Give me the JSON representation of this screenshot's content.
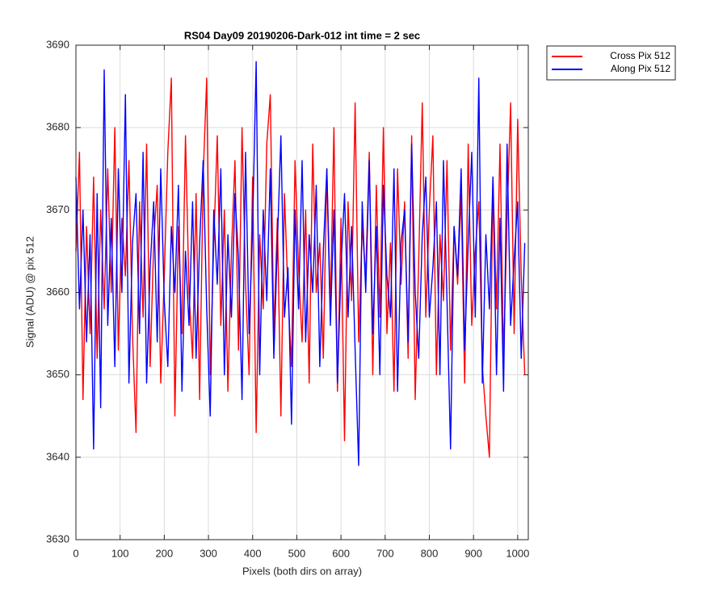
{
  "chart_data": {
    "type": "line",
    "title": "RS04 Day09 20190206-Dark-012 int time = 2 sec",
    "xlabel": "Pixels (both dirs on array)",
    "ylabel": "Signal (ADU) @ pix 512",
    "xlim": [
      0,
      1024
    ],
    "ylim": [
      3630,
      3690
    ],
    "xticks": [
      0,
      100,
      200,
      300,
      400,
      500,
      600,
      700,
      800,
      900,
      1000
    ],
    "yticks": [
      3630,
      3640,
      3650,
      3660,
      3670,
      3680,
      3690
    ],
    "grid": true,
    "legend": "outside-top-right",
    "x": [
      0,
      8,
      16,
      24,
      32,
      40,
      48,
      56,
      64,
      72,
      80,
      88,
      96,
      104,
      112,
      120,
      128,
      136,
      144,
      152,
      160,
      168,
      176,
      184,
      192,
      200,
      208,
      216,
      224,
      232,
      240,
      248,
      256,
      264,
      272,
      280,
      288,
      296,
      304,
      312,
      320,
      328,
      336,
      344,
      352,
      360,
      368,
      376,
      384,
      392,
      400,
      408,
      416,
      424,
      432,
      440,
      448,
      456,
      464,
      472,
      480,
      488,
      496,
      504,
      512,
      520,
      528,
      536,
      544,
      552,
      560,
      568,
      576,
      584,
      592,
      600,
      608,
      616,
      624,
      632,
      640,
      648,
      656,
      664,
      672,
      680,
      688,
      696,
      704,
      712,
      720,
      728,
      736,
      744,
      752,
      760,
      768,
      776,
      784,
      792,
      800,
      808,
      816,
      824,
      832,
      840,
      848,
      856,
      864,
      872,
      880,
      888,
      896,
      904,
      912,
      920,
      928,
      936,
      944,
      952,
      960,
      968,
      976,
      984,
      992,
      1000,
      1008,
      1016
    ],
    "series": [
      {
        "name": "Cross Pix 512",
        "color": "#ff0000",
        "values": [
          3665,
          3677,
          3647,
          3668,
          3655,
          3674,
          3652,
          3670,
          3658,
          3675,
          3660,
          3680,
          3653,
          3669,
          3662,
          3676,
          3655,
          3643,
          3671,
          3657,
          3678,
          3651,
          3666,
          3673,
          3649,
          3662,
          3677,
          3686,
          3645,
          3668,
          3655,
          3679,
          3660,
          3652,
          3672,
          3647,
          3674,
          3686,
          3650,
          3666,
          3679,
          3656,
          3670,
          3648,
          3665,
          3676,
          3653,
          3680,
          3661,
          3650,
          3674,
          3643,
          3667,
          3658,
          3678,
          3684,
          3655,
          3669,
          3645,
          3672,
          3660,
          3651,
          3676,
          3663,
          3654,
          3670,
          3649,
          3678,
          3660,
          3666,
          3652,
          3675,
          3658,
          3680,
          3648,
          3669,
          3642,
          3671,
          3659,
          3683,
          3654,
          3668,
          3662,
          3677,
          3650,
          3673,
          3657,
          3680,
          3655,
          3666,
          3648,
          3675,
          3661,
          3671,
          3652,
          3679,
          3647,
          3664,
          3683,
          3657,
          3670,
          3679,
          3650,
          3667,
          3659,
          3676,
          3653,
          3668,
          3661,
          3672,
          3649,
          3678,
          3656,
          3665,
          3671,
          3651,
          3645,
          3640,
          3674,
          3658,
          3678,
          3652,
          3669,
          3683,
          3655,
          3681,
          3662,
          3650
        ]
      },
      {
        "name": "Along Pix 512",
        "color": "#0000ff",
        "values": [
          3674,
          3658,
          3670,
          3654,
          3667,
          3641,
          3672,
          3646,
          3687,
          3656,
          3669,
          3651,
          3675,
          3660,
          3684,
          3649,
          3666,
          3672,
          3655,
          3677,
          3649,
          3663,
          3671,
          3654,
          3675,
          3659,
          3651,
          3668,
          3660,
          3673,
          3648,
          3665,
          3656,
          3671,
          3652,
          3666,
          3676,
          3658,
          3645,
          3670,
          3661,
          3675,
          3650,
          3667,
          3657,
          3672,
          3664,
          3647,
          3677,
          3655,
          3668,
          3688,
          3650,
          3670,
          3659,
          3675,
          3652,
          3666,
          3679,
          3657,
          3663,
          3644,
          3670,
          3658,
          3676,
          3654,
          3667,
          3660,
          3673,
          3651,
          3665,
          3675,
          3656,
          3670,
          3649,
          3663,
          3672,
          3657,
          3668,
          3653,
          3639,
          3671,
          3660,
          3676,
          3655,
          3668,
          3650,
          3673,
          3662,
          3657,
          3675,
          3648,
          3666,
          3670,
          3654,
          3678,
          3660,
          3652,
          3667,
          3674,
          3657,
          3663,
          3671,
          3650,
          3676,
          3659,
          3641,
          3668,
          3662,
          3675,
          3653,
          3666,
          3677,
          3657,
          3686,
          3649,
          3667,
          3658,
          3674,
          3650,
          3669,
          3648,
          3678,
          3656,
          3664,
          3671,
          3652,
          3666
        ]
      }
    ]
  }
}
